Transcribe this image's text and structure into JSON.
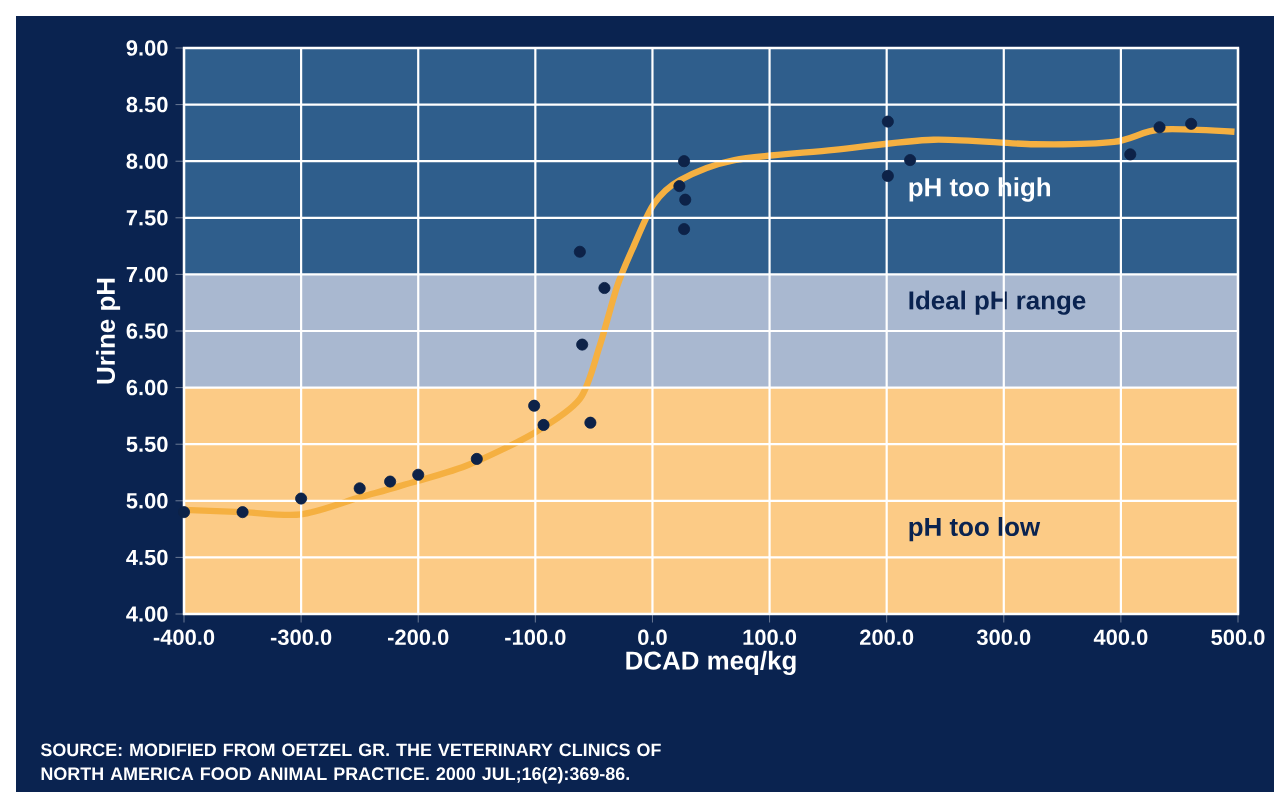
{
  "chart_data": {
    "type": "scatter",
    "xlabel": "DCAD meq/kg",
    "ylabel": "Urine pH",
    "xlim": [
      -400,
      500
    ],
    "ylim": [
      4,
      9
    ],
    "xticks": [
      {
        "value": -400,
        "label": "-400.0"
      },
      {
        "value": -300,
        "label": "-300.0"
      },
      {
        "value": -200,
        "label": "-200.0"
      },
      {
        "value": -100,
        "label": "-100.0"
      },
      {
        "value": 0,
        "label": "0.0"
      },
      {
        "value": 100,
        "label": "100.0"
      },
      {
        "value": 200,
        "label": "200.0"
      },
      {
        "value": 300,
        "label": "300.0"
      },
      {
        "value": 400,
        "label": "400.0"
      },
      {
        "value": 500,
        "label": "500.0"
      }
    ],
    "yticks": [
      {
        "value": 4,
        "label": "4.00"
      },
      {
        "value": 4.5,
        "label": "4.50"
      },
      {
        "value": 5,
        "label": "5.00"
      },
      {
        "value": 5.5,
        "label": "5.50"
      },
      {
        "value": 6,
        "label": "6.00"
      },
      {
        "value": 6.5,
        "label": "6.50"
      },
      {
        "value": 7,
        "label": "7.00"
      },
      {
        "value": 7.5,
        "label": "7.50"
      },
      {
        "value": 8,
        "label": "8.00"
      },
      {
        "value": 8.5,
        "label": "8.50"
      },
      {
        "value": 9,
        "label": "9.00"
      }
    ],
    "grid": true,
    "bands": [
      {
        "axis": "y",
        "from": 7,
        "to": 9,
        "label": "pH too high",
        "color": "#2f5e8c"
      },
      {
        "axis": "y",
        "from": 6,
        "to": 7,
        "label": "Ideal pH range",
        "color": "#a9b8d0"
      },
      {
        "axis": "y",
        "from": 4,
        "to": 6,
        "label": "pH too low",
        "color": "#fccb86"
      }
    ],
    "series": [
      {
        "color": "#0d2248",
        "marker": "circle",
        "x": [
          -400,
          -350,
          -300,
          -250,
          -224,
          -200,
          -150,
          -101,
          -93,
          -62,
          -60,
          -53,
          -41,
          27,
          23,
          28,
          27,
          201,
          201,
          220,
          408,
          433,
          460
        ],
        "values": [
          4.9,
          4.9,
          5.02,
          5.11,
          5.17,
          5.23,
          5.37,
          5.84,
          5.67,
          7.2,
          6.38,
          5.69,
          6.88,
          8.0,
          7.78,
          7.66,
          7.4,
          8.35,
          7.87,
          8.01,
          8.06,
          8.3,
          8.33
        ]
      },
      {
        "type": "line",
        "color": "#f5b041",
        "marker": "none",
        "x": [
          -400,
          -350,
          -300,
          -250,
          -216,
          -159,
          -101,
          -62,
          -45,
          -30,
          -16,
          1,
          23,
          70,
          155,
          240,
          326,
          394,
          433,
          497
        ],
        "values": [
          4.92,
          4.9,
          4.88,
          5.03,
          5.13,
          5.31,
          5.6,
          5.9,
          6.37,
          6.9,
          7.25,
          7.62,
          7.83,
          8.01,
          8.1,
          8.19,
          8.15,
          8.17,
          8.28,
          8.26
        ]
      }
    ],
    "annotations": [
      "SOURCE: MODIFIED FROM OETZEL GR. THE VETERINARY CLINICS OF NORTH AMERICA FOOD ANIMAL PRACTICE. 2000 JUL;16(2):369-86."
    ]
  }
}
